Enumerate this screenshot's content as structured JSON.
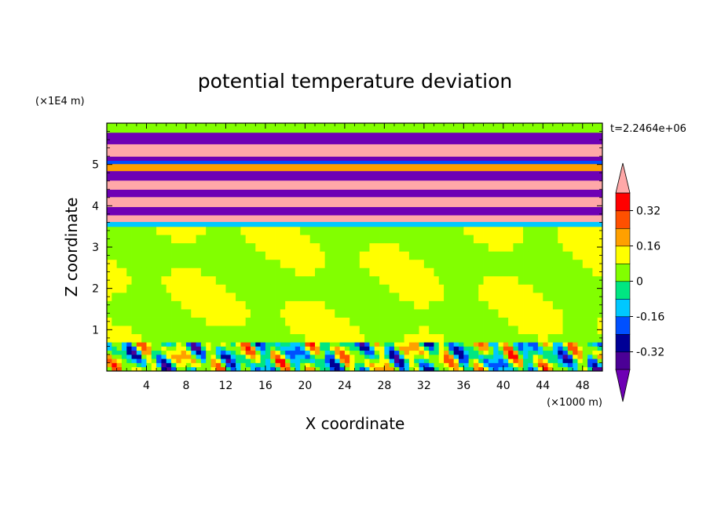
{
  "chart_data": {
    "type": "heatmap",
    "title": "potential temperature deviation",
    "xlabel": "X coordinate",
    "ylabel": "Z coordinate",
    "x_unit": "(×1000 m)",
    "y_unit": "(×1E4 m)",
    "time_label": "t=2.2464e+06",
    "xlim": [
      0,
      50
    ],
    "ylim": [
      0,
      6
    ],
    "x_ticks": [
      4,
      8,
      12,
      16,
      20,
      24,
      28,
      32,
      36,
      40,
      44,
      48
    ],
    "y_ticks": [
      1,
      2,
      3,
      4,
      5
    ],
    "colorbar": {
      "levels": [
        -0.4,
        -0.32,
        -0.24,
        -0.16,
        -0.08,
        0,
        0.08,
        0.16,
        0.24,
        0.32,
        0.4
      ],
      "colors": [
        "#4b0096",
        "#000096",
        "#0050ff",
        "#00c8ff",
        "#00e682",
        "#82ff00",
        "#ffff00",
        "#ffa000",
        "#ff5000",
        "#ff0000"
      ],
      "under_color": "#6e00b4",
      "over_color": "#ffa8a8",
      "tick_labels": [
        "0.32",
        "0.16",
        "0",
        "-0.16",
        "-0.32"
      ],
      "tick_values": [
        0.32,
        0.16,
        0,
        -0.16,
        -0.32
      ]
    },
    "bands": [
      {
        "z0": 0,
        "z1": 0.7,
        "pattern": "turbulent"
      },
      {
        "z0": 0.7,
        "z1": 3.5,
        "pattern": "green-mix"
      },
      {
        "z0": 3.5,
        "z1": 3.62,
        "value": -0.1
      },
      {
        "z0": 3.62,
        "z1": 3.78,
        "value": 0.45
      },
      {
        "z0": 3.78,
        "z1": 3.98,
        "value": -0.45
      },
      {
        "z0": 3.98,
        "z1": 4.22,
        "value": 0.45
      },
      {
        "z0": 4.22,
        "z1": 4.4,
        "value": -0.45
      },
      {
        "z0": 4.4,
        "z1": 4.62,
        "value": 0.45
      },
      {
        "z0": 4.62,
        "z1": 4.85,
        "value": -0.45
      },
      {
        "z0": 4.85,
        "z1": 5.02,
        "value": 0.2
      },
      {
        "z0": 5.02,
        "z1": 5.1,
        "value": -0.2
      },
      {
        "z0": 5.1,
        "z1": 5.2,
        "value": -0.45
      },
      {
        "z0": 5.2,
        "z1": 5.5,
        "value": 0.45
      },
      {
        "z0": 5.5,
        "z1": 5.78,
        "value": -0.45
      },
      {
        "z0": 5.78,
        "z1": 6.0,
        "value": 0.0
      }
    ]
  }
}
